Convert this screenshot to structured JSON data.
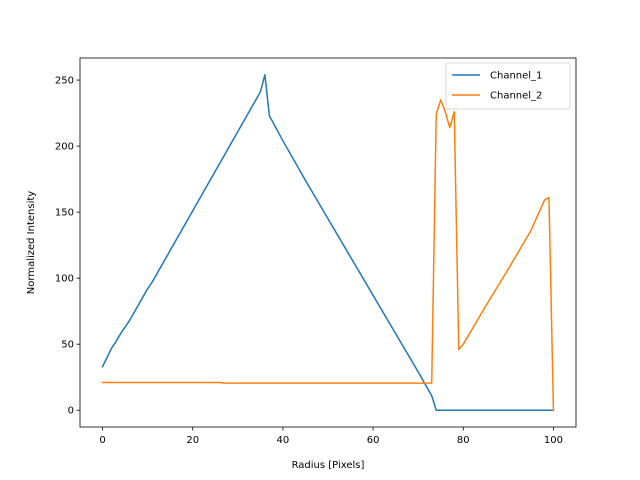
{
  "chart_data": {
    "type": "line",
    "xlabel": "Radius [Pixels]",
    "ylabel": "Normalized Intensity",
    "xlim": [
      -5,
      105
    ],
    "ylim": [
      -12.7,
      266.7
    ],
    "xticks": [
      0,
      20,
      40,
      60,
      80,
      100
    ],
    "yticks": [
      0,
      50,
      100,
      150,
      200,
      250
    ],
    "grid": false,
    "legend_position": "upper right",
    "series": [
      {
        "name": "Channel_1",
        "color": "#1f77b4",
        "points": [
          [
            0,
            33
          ],
          [
            1,
            40
          ],
          [
            2,
            47
          ],
          [
            3,
            52
          ],
          [
            4,
            58
          ],
          [
            5,
            63
          ],
          [
            6,
            68
          ],
          [
            7,
            74
          ],
          [
            8,
            80
          ],
          [
            9,
            86
          ],
          [
            10,
            92
          ],
          [
            11,
            97
          ],
          [
            12,
            103
          ],
          [
            13,
            109
          ],
          [
            14,
            115
          ],
          [
            15,
            121
          ],
          [
            16,
            127
          ],
          [
            17,
            133
          ],
          [
            18,
            139
          ],
          [
            19,
            145
          ],
          [
            20,
            151
          ],
          [
            21,
            157
          ],
          [
            22,
            163
          ],
          [
            23,
            169
          ],
          [
            24,
            175
          ],
          [
            25,
            181
          ],
          [
            26,
            187
          ],
          [
            27,
            193
          ],
          [
            28,
            199
          ],
          [
            29,
            205
          ],
          [
            30,
            211
          ],
          [
            31,
            217
          ],
          [
            32,
            223
          ],
          [
            33,
            229
          ],
          [
            34,
            235
          ],
          [
            35,
            241
          ],
          [
            36,
            254
          ],
          [
            37,
            223
          ],
          [
            40,
            204
          ],
          [
            45,
            174
          ],
          [
            50,
            145
          ],
          [
            55,
            116
          ],
          [
            60,
            87
          ],
          [
            65,
            58
          ],
          [
            70,
            29
          ],
          [
            73,
            11
          ],
          [
            74,
            0
          ],
          [
            80,
            0
          ],
          [
            90,
            0
          ],
          [
            100,
            0
          ]
        ]
      },
      {
        "name": "Channel_2",
        "color": "#ff7f0e",
        "points": [
          [
            0,
            21
          ],
          [
            10,
            21
          ],
          [
            20,
            21
          ],
          [
            26,
            21
          ],
          [
            27,
            20.5
          ],
          [
            40,
            20.5
          ],
          [
            60,
            20.5
          ],
          [
            73,
            20.5
          ],
          [
            74,
            224
          ],
          [
            75,
            235
          ],
          [
            76,
            226
          ],
          [
            77,
            214
          ],
          [
            78,
            226
          ],
          [
            79,
            46
          ],
          [
            80,
            50
          ],
          [
            85,
            79
          ],
          [
            90,
            107
          ],
          [
            95,
            136
          ],
          [
            98,
            159
          ],
          [
            99,
            161
          ],
          [
            100,
            0
          ]
        ]
      }
    ]
  }
}
